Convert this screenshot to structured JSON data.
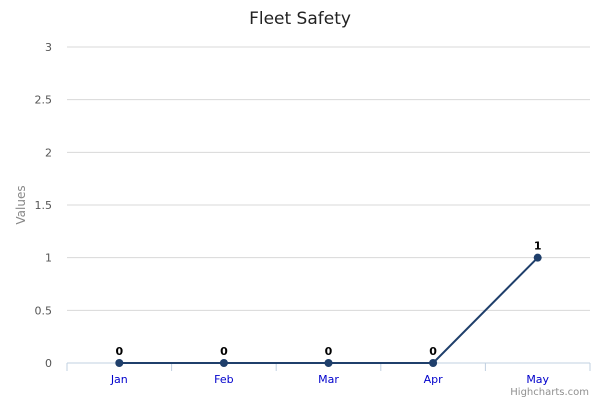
{
  "chart_data": {
    "type": "line",
    "title": "Fleet Safety",
    "xlabel": "",
    "ylabel": "Values",
    "categories": [
      "Jan",
      "Feb",
      "Mar",
      "Apr",
      "May"
    ],
    "series": [
      {
        "values": [
          0,
          0,
          0,
          0,
          1
        ],
        "color": "#1f3f6b"
      }
    ],
    "ylim": [
      0,
      3
    ],
    "yticks": [
      "0",
      "0.5",
      "1",
      "1.5",
      "2",
      "2.5",
      "3"
    ],
    "grid": true,
    "data_labels": true,
    "legend": "none"
  },
  "credits": "Highcharts.com"
}
